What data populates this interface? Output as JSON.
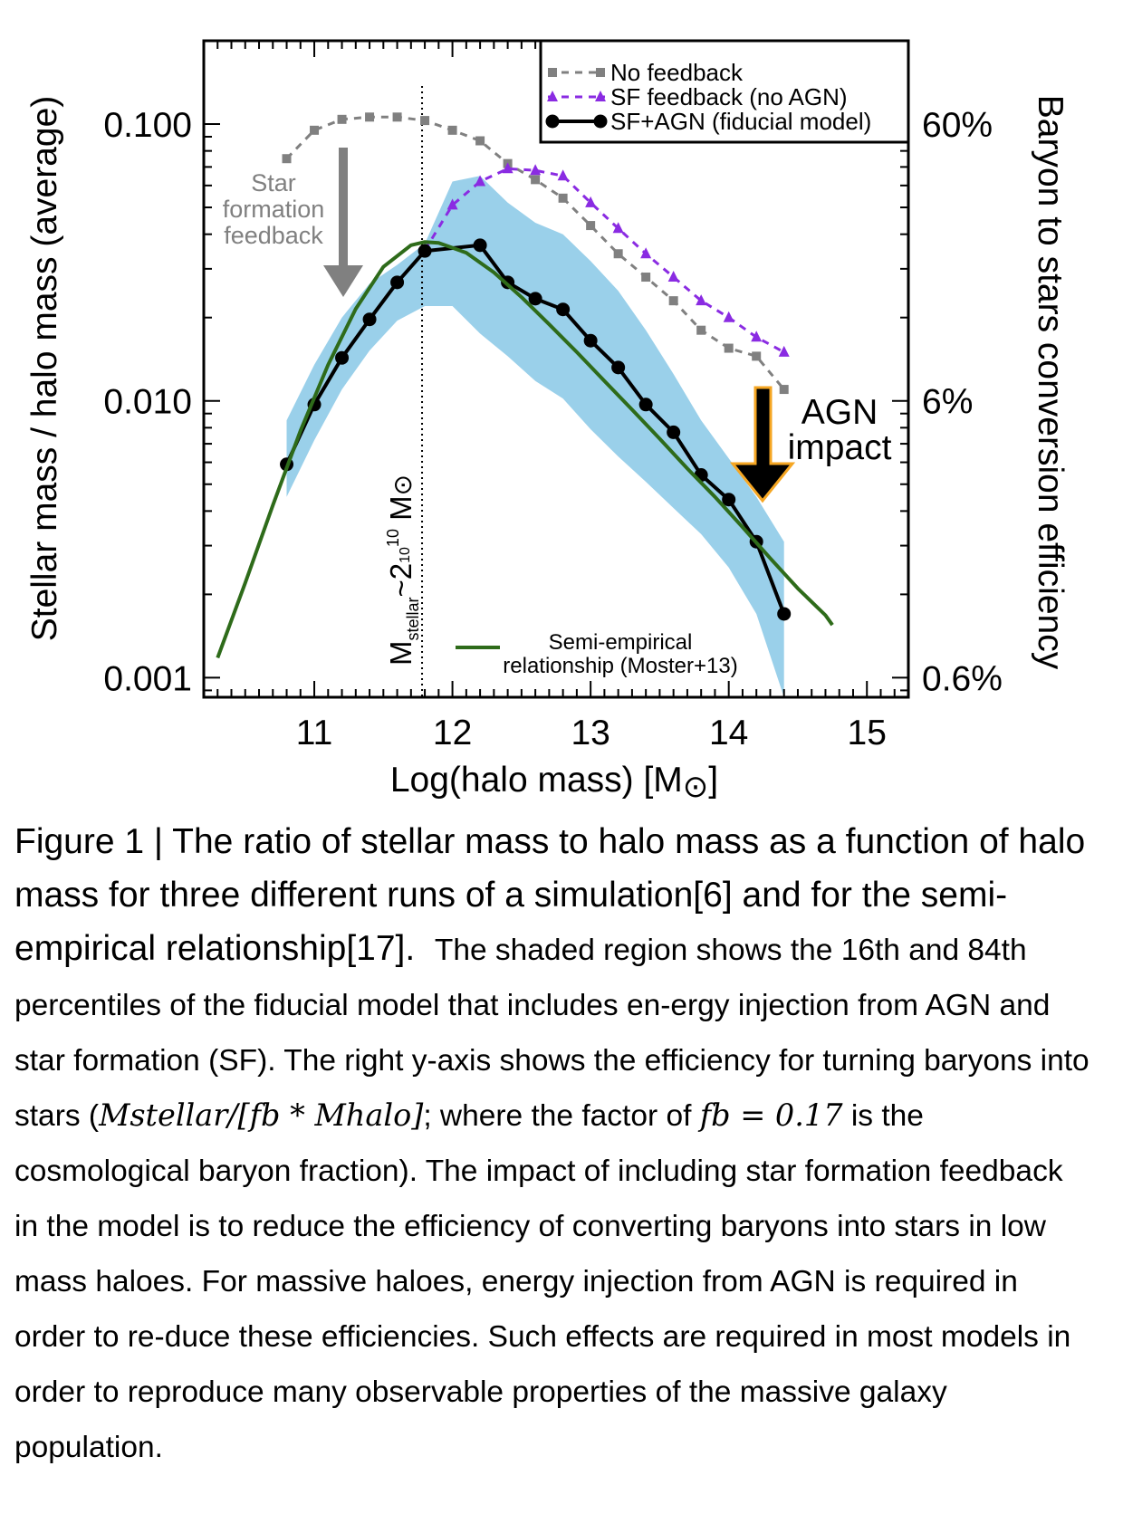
{
  "chart_data": {
    "type": "line",
    "xlabel": "Log(halo mass) [M",
    "ylabel": "Stellar mass / halo mass (average)",
    "ylabel_right": "Baryon to stars conversion efficiency",
    "xlim": [
      10.2,
      15.3
    ],
    "ylim": [
      0.00085,
      0.2
    ],
    "yscale": "log",
    "x_ticks": [
      11,
      12,
      13,
      14,
      15
    ],
    "x_tick_labels": [
      "11",
      "12",
      "13",
      "14",
      "15"
    ],
    "y_ticks": [
      0.001,
      0.01,
      0.1
    ],
    "y_tick_labels": [
      "0.001",
      "0.010",
      "0.100"
    ],
    "y_right_tick_labels": [
      "0.6%",
      "6%",
      "60%"
    ],
    "legend_position": "top-right",
    "series": [
      {
        "name": "No feedback",
        "color": "#808080",
        "style": "dashed",
        "marker": "square",
        "x": [
          10.8,
          11.0,
          11.2,
          11.4,
          11.6,
          11.8,
          12.0,
          12.2,
          12.4,
          12.6,
          12.8,
          13.0,
          13.2,
          13.4,
          13.6,
          13.8,
          14.0,
          14.2,
          14.4
        ],
        "y": [
          0.075,
          0.095,
          0.104,
          0.106,
          0.106,
          0.103,
          0.095,
          0.087,
          0.072,
          0.063,
          0.054,
          0.043,
          0.034,
          0.028,
          0.023,
          0.018,
          0.0155,
          0.0145,
          0.011
        ]
      },
      {
        "name": "SF feedback (no AGN)",
        "color": "#8a2be2",
        "style": "dashed",
        "marker": "triangle",
        "x": [
          11.8,
          12.0,
          12.2,
          12.4,
          12.6,
          12.8,
          13.0,
          13.2,
          13.4,
          13.6,
          13.8,
          14.0,
          14.2,
          14.4
        ],
        "y": [
          0.035,
          0.051,
          0.062,
          0.069,
          0.068,
          0.065,
          0.052,
          0.042,
          0.034,
          0.028,
          0.023,
          0.02,
          0.017,
          0.015
        ]
      },
      {
        "name": "SF+AGN (fiducial model)",
        "color": "#000000",
        "style": "solid",
        "marker": "circle",
        "x": [
          10.8,
          11.0,
          11.2,
          11.4,
          11.6,
          11.8,
          12.2,
          12.4,
          12.6,
          12.8,
          13.0,
          13.2,
          13.4,
          13.6,
          13.8,
          14.0,
          14.2,
          14.4
        ],
        "y": [
          0.0059,
          0.0097,
          0.0143,
          0.0197,
          0.0268,
          0.0348,
          0.0365,
          0.0268,
          0.0234,
          0.0214,
          0.0165,
          0.0132,
          0.0097,
          0.0077,
          0.0054,
          0.0044,
          0.0031,
          0.0017
        ]
      },
      {
        "name": "Semi-empirical relationship (Moster+13)",
        "color": "#2e6b1a",
        "style": "solid",
        "marker": "none",
        "x": [
          10.3,
          10.5,
          10.7,
          10.9,
          11.1,
          11.3,
          11.5,
          11.7,
          11.8,
          11.9,
          12.1,
          12.3,
          12.5,
          12.7,
          12.9,
          13.1,
          13.3,
          13.5,
          13.7,
          13.9,
          14.1,
          14.3,
          14.5,
          14.7,
          14.75
        ],
        "y": [
          0.00118,
          0.0022,
          0.0042,
          0.0078,
          0.0135,
          0.0215,
          0.0305,
          0.0365,
          0.0375,
          0.0372,
          0.0343,
          0.0291,
          0.0237,
          0.0189,
          0.015,
          0.0118,
          0.0093,
          0.0073,
          0.0057,
          0.0045,
          0.0035,
          0.0027,
          0.0021,
          0.00168,
          0.00155
        ]
      }
    ],
    "band": {
      "name": "16th-84th percentiles of fiducial model",
      "color": "#9ad0ea",
      "x": [
        10.8,
        11.0,
        11.2,
        11.4,
        11.6,
        11.8,
        12.0,
        12.2,
        12.4,
        12.6,
        12.8,
        13.0,
        13.2,
        13.4,
        13.6,
        13.8,
        14.0,
        14.2,
        14.4
      ],
      "upper": [
        0.0085,
        0.0135,
        0.02,
        0.0265,
        0.031,
        0.037,
        0.062,
        0.065,
        0.052,
        0.044,
        0.04,
        0.032,
        0.025,
        0.018,
        0.0125,
        0.0085,
        0.0062,
        0.0045,
        0.0031
      ],
      "lower": [
        0.0045,
        0.0072,
        0.011,
        0.0152,
        0.0195,
        0.022,
        0.022,
        0.0175,
        0.0145,
        0.0118,
        0.0102,
        0.0079,
        0.0063,
        0.0051,
        0.0041,
        0.0033,
        0.0025,
        0.0017,
        0.00085
      ]
    },
    "vline": {
      "x": 11.78,
      "style": "dotted",
      "label": "M",
      "label_sub": "stellar",
      "label_rest": "~2",
      "label_mid": "10",
      "label_sup": "10",
      "label_unit": " M"
    },
    "annotations": [
      {
        "name": "star-formation-feedback",
        "lines": [
          "Star",
          "formation",
          "feedback"
        ],
        "color": "#808080"
      },
      {
        "name": "agn-impact",
        "lines": [
          "AGN",
          "impact"
        ],
        "color": "#000000"
      }
    ],
    "legend_semi_lines": [
      "Semi-empirical",
      "relationship (Moster+13)"
    ]
  },
  "caption": {
    "lead": "Figure 1 | The ratio of stellar mass to halo mass as a function of halo mass for three different runs of a simulation[6] and for the semi-empirical relationship[17].",
    "body1": "The shaded region shows the 16th and 84th percentiles of the fiducial model that includes en-ergy injection from AGN and star formation (SF). The right y-axis shows the efficiency for turning baryons into stars (",
    "formula": "Mstellar/[fb * Mhalo]",
    "body2": "; where the factor of ",
    "fb": "fb = 0.17",
    "body3": " is the cosmological baryon fraction). The impact of including star formation feedback in the model is to reduce the efficiency of converting baryons into stars in low mass haloes. For massive haloes, energy injection from AGN is required in order to re-duce these efficiencies. Such effects are required in most models in order to reproduce many observable properties of the massive galaxy population."
  }
}
